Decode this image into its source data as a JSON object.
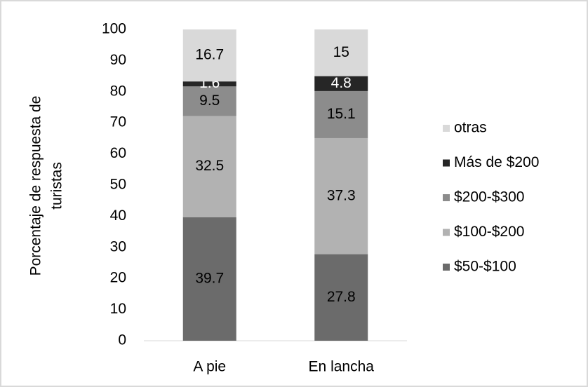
{
  "chart_data": {
    "type": "stacked_bar",
    "y_label": [
      "Porcentaje de respuesta de",
      "turistas"
    ],
    "categories": [
      "A pie",
      "En lancha"
    ],
    "series": [
      {
        "name": "$50-$100",
        "color": "#6b6b6b",
        "label_color": "#000000",
        "values": [
          39.7,
          27.8
        ]
      },
      {
        "name": "$100-$200",
        "color": "#b2b2b2",
        "label_color": "#000000",
        "values": [
          32.5,
          37.3
        ]
      },
      {
        "name": "$200-$300",
        "color": "#8c8c8c",
        "label_color": "#000000",
        "values": [
          9.5,
          15.1
        ]
      },
      {
        "name": "Más de $200",
        "color": "#262626",
        "label_color": "#ffffff",
        "values": [
          1.6,
          4.8
        ]
      },
      {
        "name": "otras",
        "color": "#d9d9d9",
        "label_color": "#000000",
        "values": [
          16.7,
          15
        ]
      }
    ],
    "ylim": [
      0,
      100
    ],
    "yticks": [
      0,
      10,
      20,
      30,
      40,
      50,
      60,
      70,
      80,
      90,
      100
    ],
    "grid": false,
    "legend": "right"
  }
}
